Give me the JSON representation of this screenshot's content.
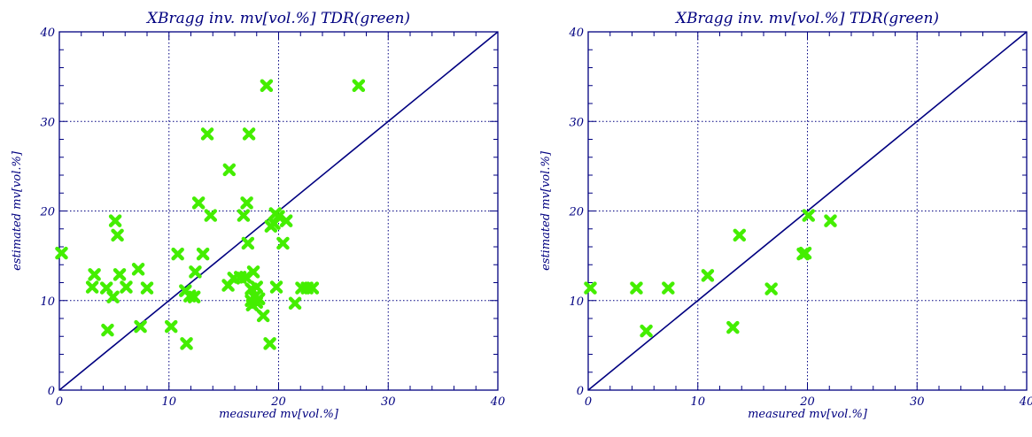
{
  "chart_data": [
    {
      "type": "scatter",
      "title": "XBragg inv. mv[vol.%] TDR(green)",
      "xlabel": "measured mv[vol.%]",
      "ylabel": "estimated mv[vol.%]",
      "xlim": [
        0,
        40
      ],
      "ylim": [
        0,
        40
      ],
      "xticks": [
        "0",
        "10",
        "20",
        "30",
        "40"
      ],
      "yticks": [
        "0",
        "10",
        "20",
        "30",
        "40"
      ],
      "grid": true,
      "reference_line": "1:1",
      "axis_color": "#000080",
      "marker_color": "#44ee00",
      "points": [
        [
          0.2,
          15.3
        ],
        [
          3.0,
          11.5
        ],
        [
          3.2,
          12.9
        ],
        [
          4.3,
          11.4
        ],
        [
          4.4,
          6.7
        ],
        [
          4.9,
          10.4
        ],
        [
          5.1,
          18.9
        ],
        [
          5.3,
          17.3
        ],
        [
          5.5,
          12.9
        ],
        [
          6.1,
          11.5
        ],
        [
          7.2,
          13.5
        ],
        [
          7.4,
          7.1
        ],
        [
          8.0,
          11.4
        ],
        [
          10.2,
          7.1
        ],
        [
          10.8,
          15.2
        ],
        [
          11.5,
          11.1
        ],
        [
          11.6,
          5.2
        ],
        [
          11.9,
          10.5
        ],
        [
          12.3,
          10.4
        ],
        [
          12.4,
          13.2
        ],
        [
          12.7,
          20.9
        ],
        [
          13.1,
          15.2
        ],
        [
          13.5,
          28.6
        ],
        [
          13.8,
          19.5
        ],
        [
          15.4,
          11.7
        ],
        [
          15.5,
          24.6
        ],
        [
          15.9,
          12.5
        ],
        [
          16.5,
          12.6
        ],
        [
          16.8,
          19.5
        ],
        [
          17.0,
          12.6
        ],
        [
          17.1,
          20.9
        ],
        [
          17.2,
          16.4
        ],
        [
          17.3,
          28.6
        ],
        [
          17.5,
          10.0
        ],
        [
          17.5,
          11.3
        ],
        [
          17.6,
          9.5
        ],
        [
          17.7,
          13.2
        ],
        [
          17.8,
          10.4
        ],
        [
          18.0,
          9.8
        ],
        [
          18.0,
          11.5
        ],
        [
          18.2,
          10.2
        ],
        [
          18.6,
          8.3
        ],
        [
          18.9,
          34.0
        ],
        [
          19.2,
          5.2
        ],
        [
          19.3,
          18.3
        ],
        [
          19.6,
          18.6
        ],
        [
          19.7,
          19.7
        ],
        [
          19.8,
          11.5
        ],
        [
          20.0,
          19.4
        ],
        [
          20.4,
          16.4
        ],
        [
          20.7,
          18.9
        ],
        [
          21.5,
          9.7
        ],
        [
          22.1,
          11.4
        ],
        [
          22.6,
          11.4
        ],
        [
          23.1,
          11.4
        ],
        [
          27.3,
          34.0
        ]
      ]
    },
    {
      "type": "scatter",
      "title": "XBragg inv. mv[vol.%] TDR(green)",
      "xlabel": "measured mv[vol.%]",
      "ylabel": "estimated mv[vol.%]",
      "xlim": [
        0,
        40
      ],
      "ylim": [
        0,
        40
      ],
      "xticks": [
        "0",
        "10",
        "20",
        "30",
        "40"
      ],
      "yticks": [
        "0",
        "10",
        "20",
        "30",
        "40"
      ],
      "grid": true,
      "reference_line": "1:1",
      "axis_color": "#000080",
      "marker_color": "#44ee00",
      "points": [
        [
          0.2,
          11.4
        ],
        [
          4.4,
          11.4
        ],
        [
          5.3,
          6.6
        ],
        [
          7.3,
          11.4
        ],
        [
          10.9,
          12.8
        ],
        [
          13.2,
          7.0
        ],
        [
          13.8,
          17.3
        ],
        [
          16.7,
          11.3
        ],
        [
          19.6,
          15.2
        ],
        [
          19.8,
          15.3
        ],
        [
          20.1,
          19.5
        ],
        [
          22.1,
          18.9
        ]
      ]
    }
  ]
}
